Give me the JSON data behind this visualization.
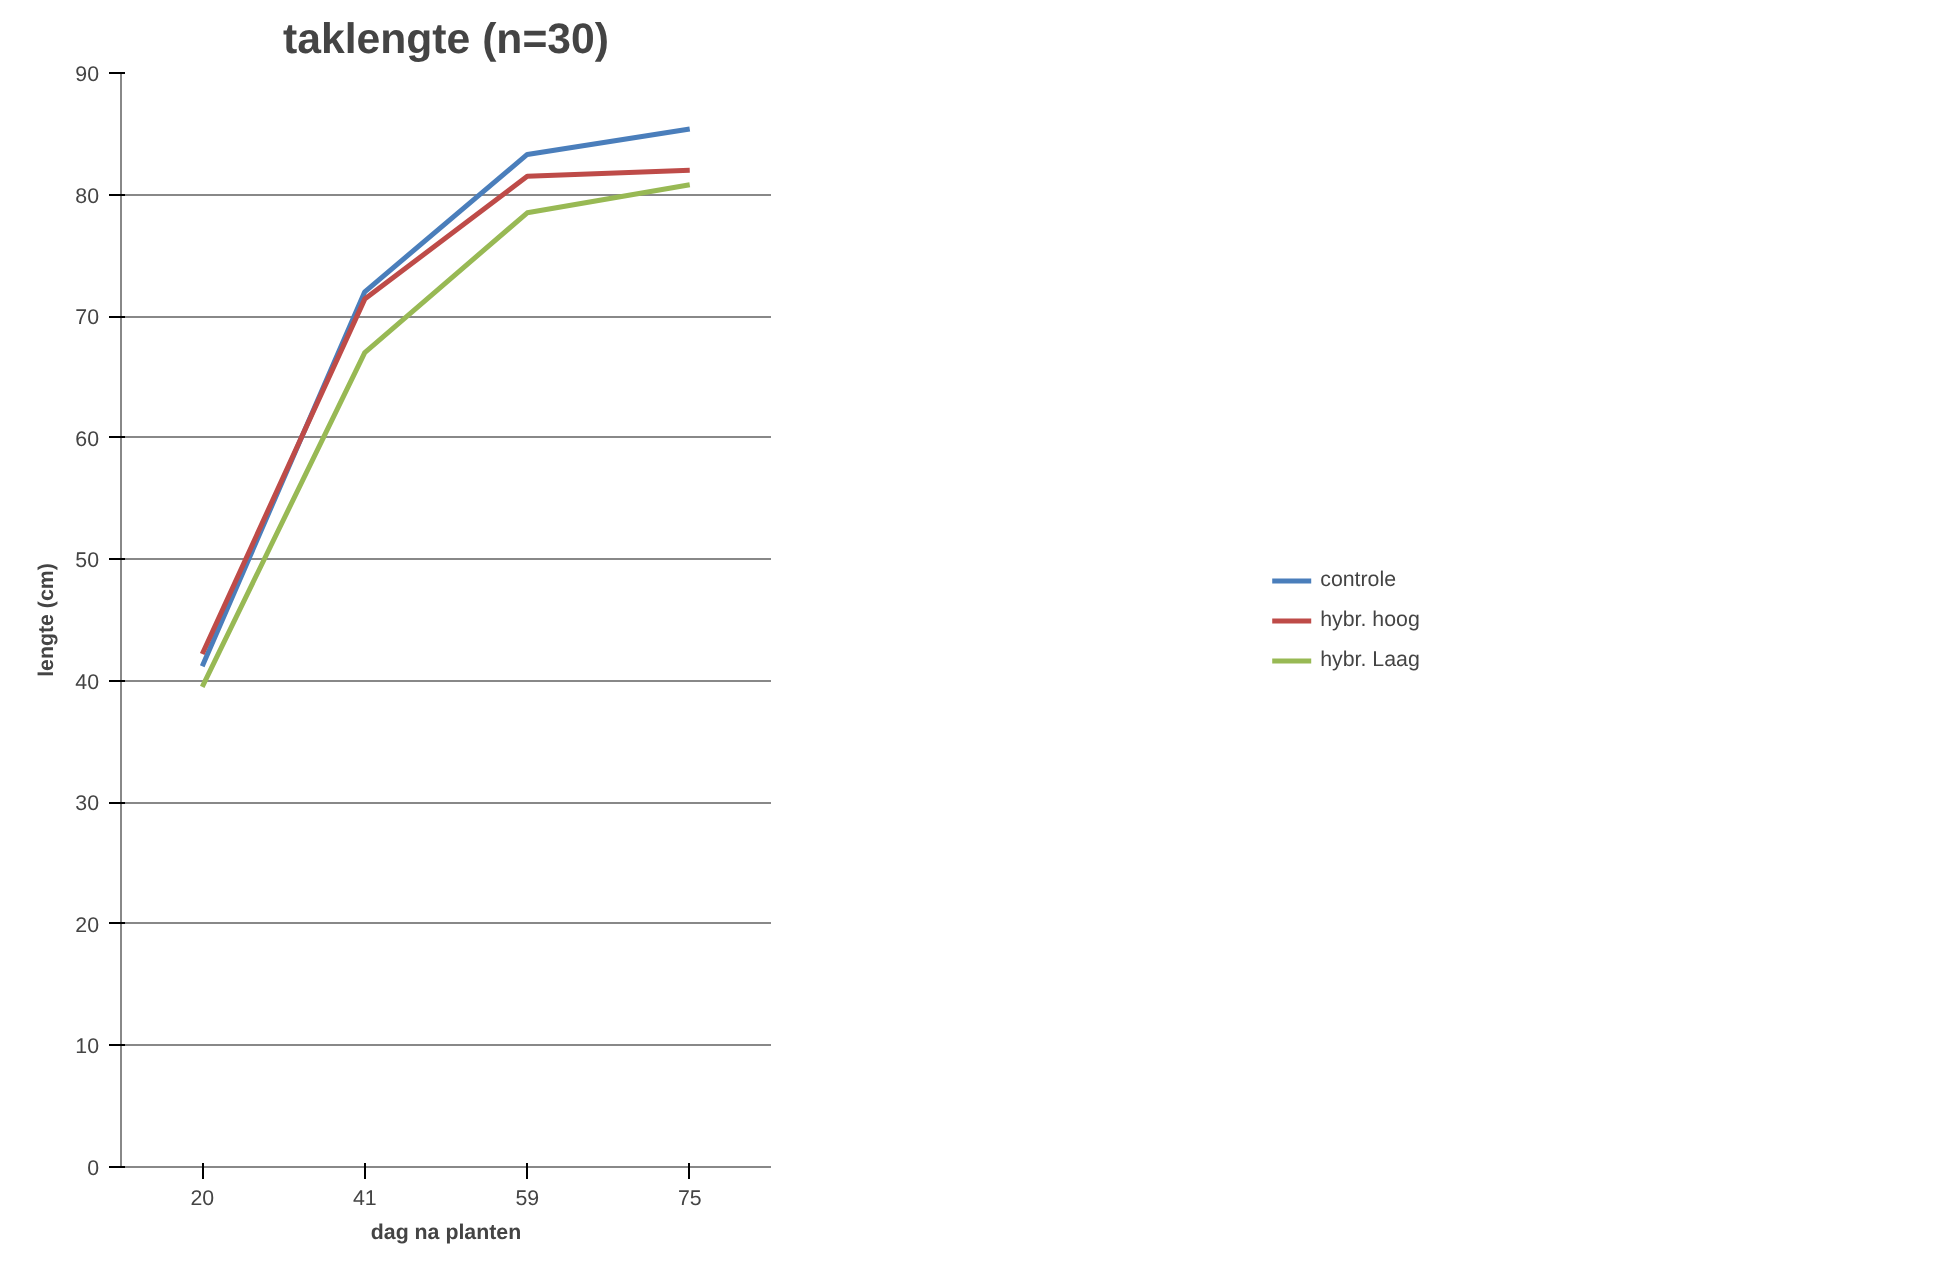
{
  "chart_data": {
    "type": "line",
    "title": "taklengte (n=30)",
    "xlabel": "dag na planten",
    "ylabel": "lengte (cm)",
    "categories": [
      "20",
      "41",
      "59",
      "75"
    ],
    "series": [
      {
        "name": "controle",
        "color": "#4a7ebb",
        "values": [
          41.2,
          72.0,
          83.3,
          85.4
        ]
      },
      {
        "name": "hybr. hoog",
        "color": "#be4b48",
        "values": [
          42.2,
          71.4,
          81.5,
          82.0
        ]
      },
      {
        "name": "hybr. Laag",
        "color": "#98b954",
        "values": [
          39.5,
          67.0,
          78.5,
          80.8
        ]
      }
    ],
    "ylim": [
      0,
      90
    ],
    "yticks": [
      0,
      10,
      20,
      30,
      40,
      50,
      60,
      70,
      80,
      90
    ],
    "grid": "y",
    "legend": "right",
    "marker": "none",
    "line_style": "solid"
  }
}
